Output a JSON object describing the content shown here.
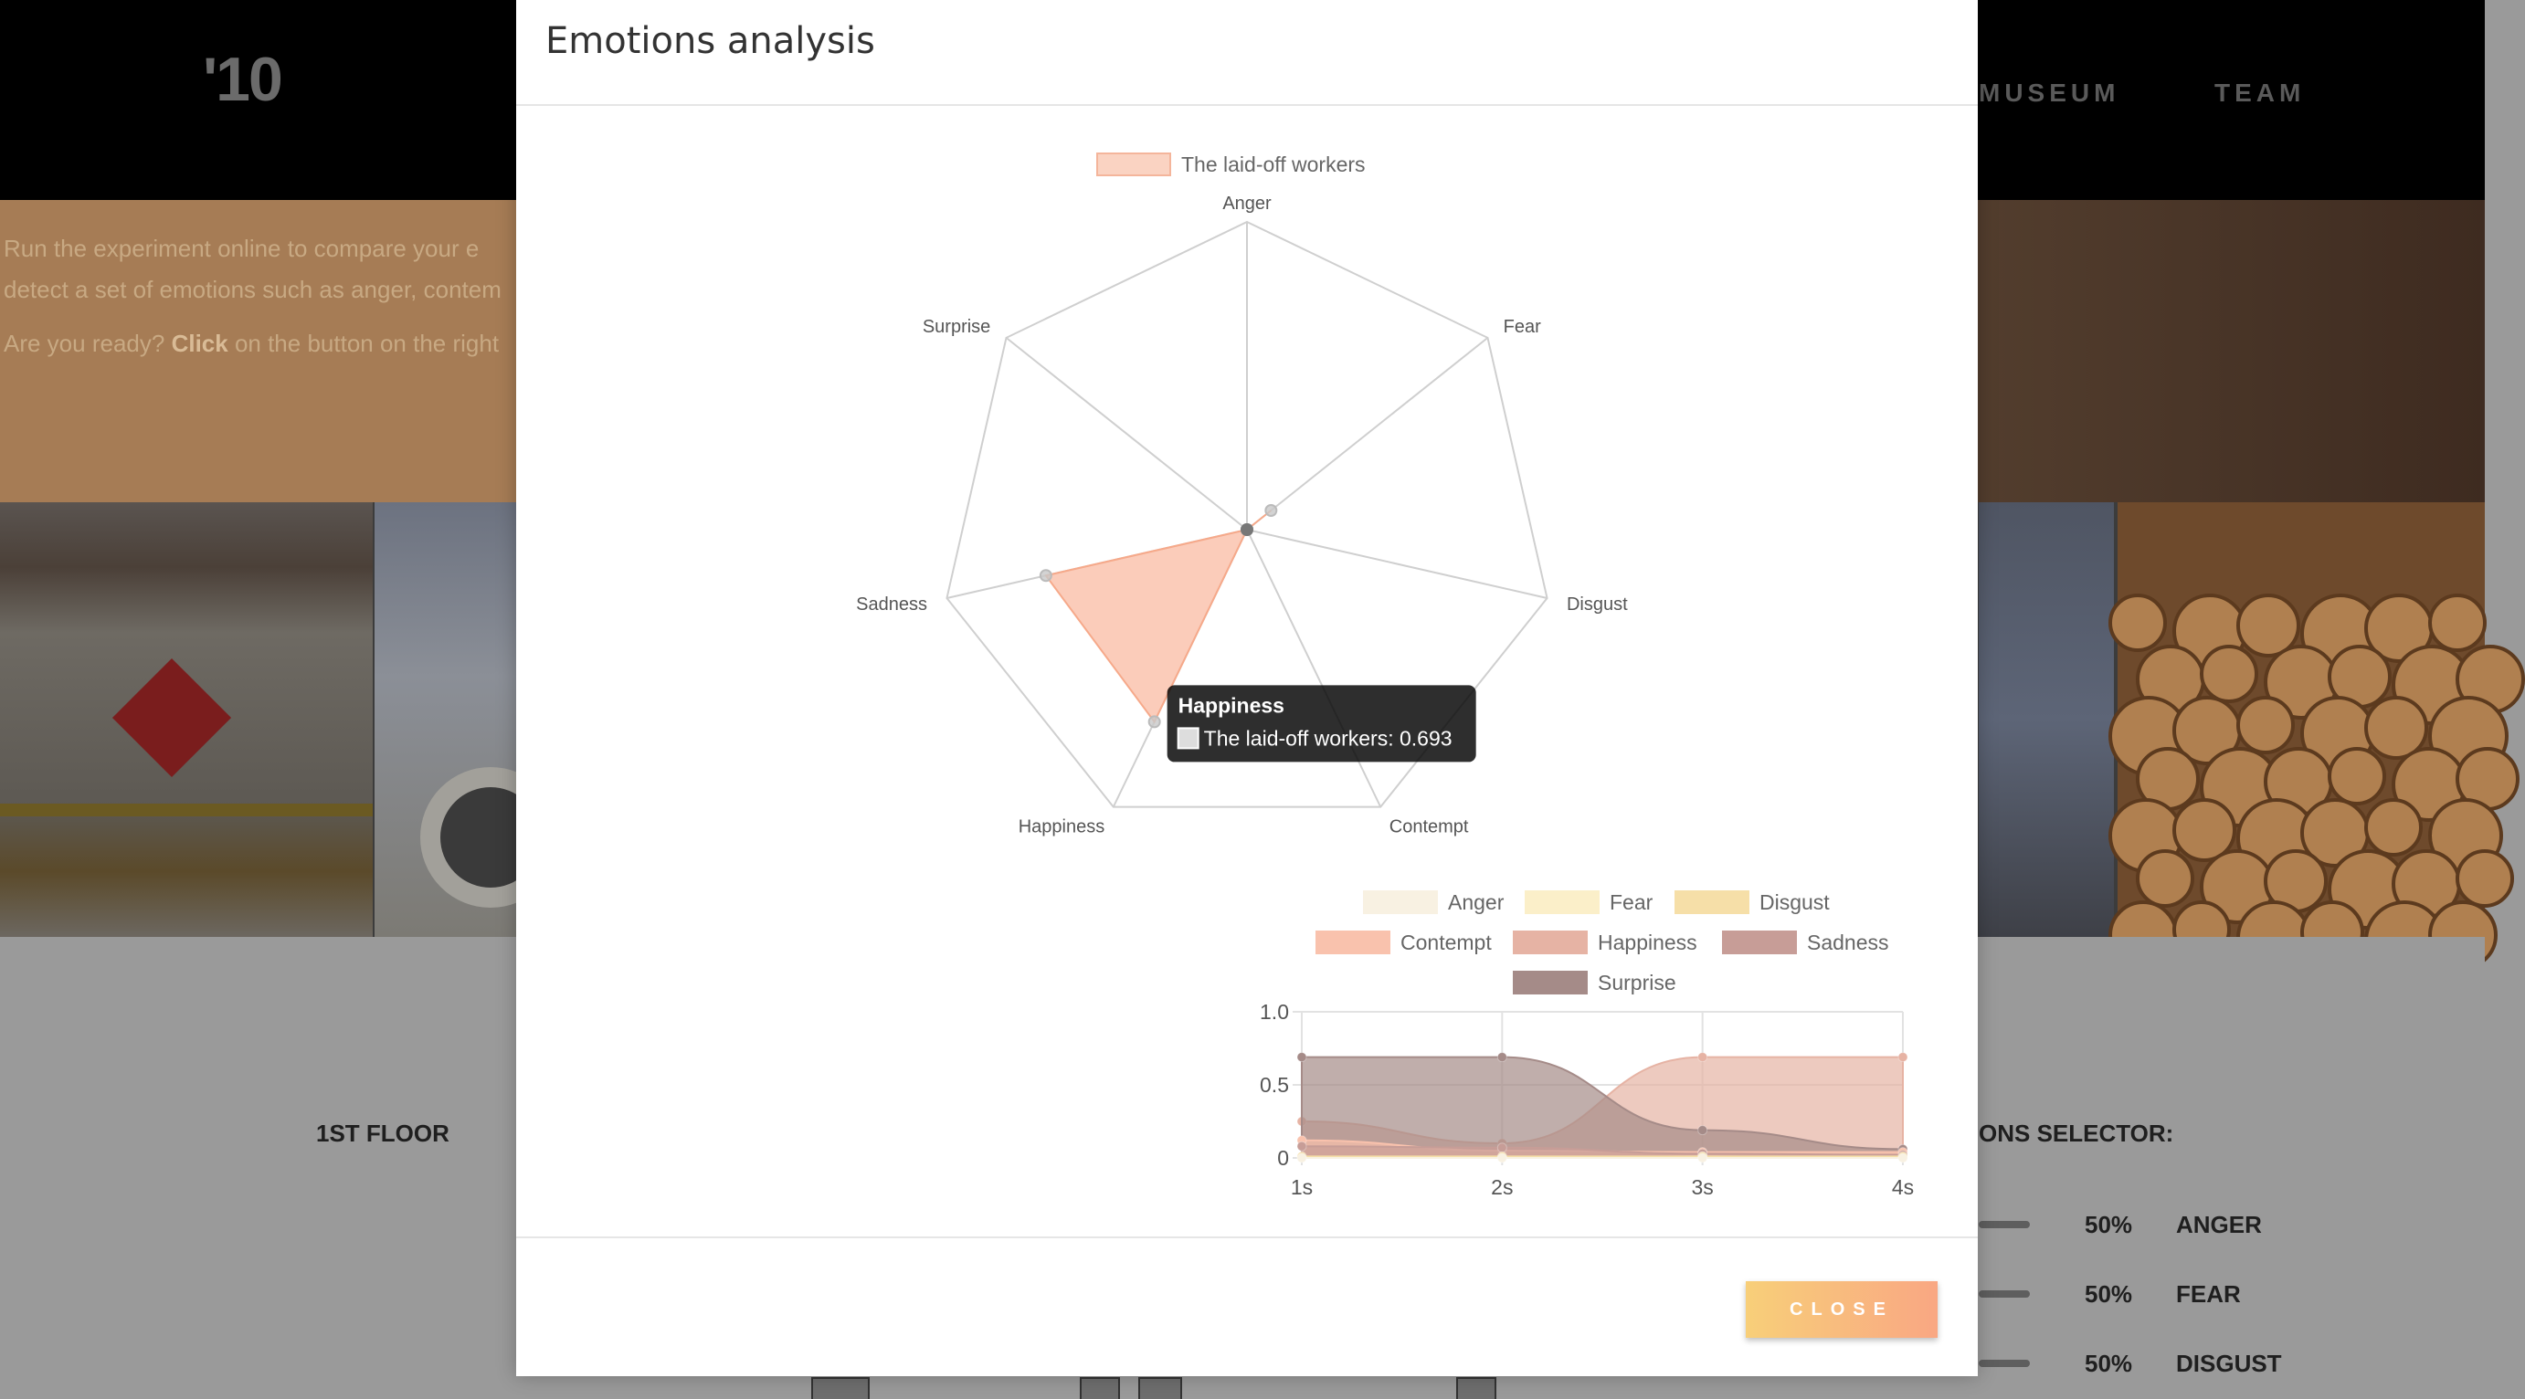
{
  "header": {
    "logo": "'10",
    "nav": [
      {
        "label": "MUSEUM"
      },
      {
        "label": "TEAM"
      }
    ]
  },
  "intro": {
    "line1": "Run the experiment online to compare your e",
    "line2": "detect a set of emotions such as anger, contem",
    "line3_pre": "Are you ready? ",
    "line3_bold": "Click",
    "line3_post": " on the button on the right"
  },
  "floor": {
    "label": "1ST FLOOR"
  },
  "selector": {
    "label": "ONS SELECTOR:",
    "rows": [
      {
        "pct": "50%",
        "name": "ANGER"
      },
      {
        "pct": "50%",
        "name": "FEAR"
      },
      {
        "pct": "50%",
        "name": "DISGUST"
      }
    ]
  },
  "modal": {
    "title": "Emotions analysis",
    "close_label": "CLOSE"
  },
  "colors": {
    "accent_gradient_start": "#f8cf79",
    "accent_gradient_end": "#f9a783",
    "radar_fill": "#f9b39a"
  },
  "chart_data": [
    {
      "type": "radar",
      "title": "",
      "legend": [
        "The laid-off workers"
      ],
      "axes": [
        "Anger",
        "Fear",
        "Disgust",
        "Contempt",
        "Happiness",
        "Sadness",
        "Surprise"
      ],
      "range": [
        0,
        1
      ],
      "series": [
        {
          "name": "The laid-off workers",
          "values": [
            0.0,
            0.1,
            0.0,
            0.0,
            0.693,
            0.67,
            0.0
          ]
        }
      ],
      "tooltip": {
        "title": "Happiness",
        "body": "The laid-off workers: 0.693"
      }
    },
    {
      "type": "area",
      "title": "",
      "x": [
        "1s",
        "2s",
        "3s",
        "4s"
      ],
      "ylim": [
        0,
        1
      ],
      "yticks": [
        "0",
        "0.5",
        "1.0"
      ],
      "series": [
        {
          "name": "Anger",
          "color": "#f8f1e2",
          "values": [
            0.0,
            0.0,
            0.0,
            0.0
          ]
        },
        {
          "name": "Fear",
          "color": "#fbefc9",
          "values": [
            0.0,
            0.0,
            0.01,
            0.0
          ]
        },
        {
          "name": "Disgust",
          "color": "#f6dfa8",
          "values": [
            0.01,
            0.01,
            0.01,
            0.01
          ]
        },
        {
          "name": "Contempt",
          "color": "#f9c2ad",
          "values": [
            0.12,
            0.05,
            0.04,
            0.04
          ]
        },
        {
          "name": "Happiness",
          "color": "#e6b3a4",
          "values": [
            0.25,
            0.1,
            0.69,
            0.69
          ]
        },
        {
          "name": "Sadness",
          "color": "#c79d97",
          "values": [
            0.08,
            0.07,
            0.03,
            0.02
          ]
        },
        {
          "name": "Surprise",
          "color": "#a58b88",
          "values": [
            0.69,
            0.69,
            0.19,
            0.06
          ]
        }
      ]
    }
  ]
}
